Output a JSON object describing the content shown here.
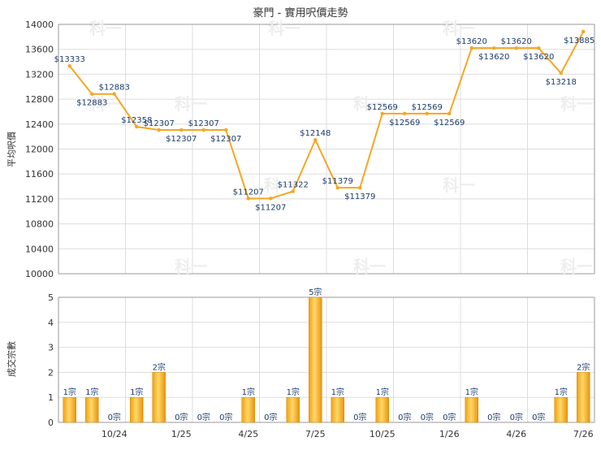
{
  "chart_data": [
    {
      "type": "line",
      "title": "豪門 - 實用呎價走勢",
      "xlabel": "",
      "ylabel": "平均呎價",
      "ylim": [
        10000,
        14000
      ],
      "yticks": [
        10000,
        10400,
        10800,
        11200,
        11600,
        12000,
        12400,
        12800,
        13200,
        13600,
        14000
      ],
      "grid": true,
      "x": [
        "8/24",
        "9/24",
        "10/24",
        "11/24",
        "12/24",
        "1/25",
        "2/25",
        "3/25",
        "4/25",
        "5/25",
        "6/25",
        "7/25",
        "8/25",
        "9/25",
        "10/25",
        "11/25",
        "12/25",
        "1/26",
        "2/26",
        "3/26",
        "4/26",
        "5/26",
        "6/26",
        "7/26"
      ],
      "series": [
        {
          "values": [
            13333,
            12883,
            12883,
            12358,
            12307,
            12307,
            12307,
            12307,
            11207,
            11207,
            11322,
            12148,
            11379,
            11379,
            12569,
            12569,
            12569,
            12569,
            13620,
            13620,
            13620,
            13620,
            13218,
            13885
          ],
          "labels": [
            "$13333",
            "$12883",
            "$12883",
            "$12358",
            "$12307",
            "$12307",
            "$12307",
            "$12307",
            "$11207",
            "$11207",
            "$11322",
            "$12148",
            "$11379",
            "$11379",
            "$12569",
            "$12569",
            "$12569",
            "$12569",
            "$13620",
            "$13620",
            "$13620",
            "$13620",
            "$13218",
            "$13885"
          ],
          "color": "#f5a623"
        }
      ]
    },
    {
      "type": "bar",
      "title": "",
      "xlabel": "",
      "ylabel": "成交宗數",
      "ylim": [
        0,
        5
      ],
      "yticks": [
        0,
        1,
        2,
        3,
        4,
        5
      ],
      "grid": true,
      "categories": [
        "8/24",
        "9/24",
        "10/24",
        "11/24",
        "12/24",
        "1/25",
        "2/25",
        "3/25",
        "4/25",
        "5/25",
        "6/25",
        "7/25",
        "8/25",
        "9/25",
        "10/25",
        "11/25",
        "12/25",
        "1/26",
        "2/26",
        "3/26",
        "4/26",
        "5/26",
        "6/26",
        "7/26"
      ],
      "values": [
        1,
        1,
        0,
        1,
        2,
        0,
        0,
        0,
        1,
        0,
        1,
        5,
        1,
        0,
        1,
        0,
        0,
        0,
        1,
        0,
        0,
        0,
        1,
        2
      ],
      "labels": [
        "1宗",
        "1宗",
        "0宗",
        "1宗",
        "2宗",
        "0宗",
        "0宗",
        "0宗",
        "1宗",
        "0宗",
        "1宗",
        "5宗",
        "1宗",
        "0宗",
        "1宗",
        "0宗",
        "0宗",
        "0宗",
        "1宗",
        "0宗",
        "0宗",
        "0宗",
        "1宗",
        "2宗"
      ],
      "color": "#f5a623"
    }
  ],
  "x_tick_labels": [
    "10/24",
    "1/25",
    "4/25",
    "7/25",
    "10/25",
    "1/26",
    "4/26",
    "7/26"
  ],
  "watermark": "科一"
}
